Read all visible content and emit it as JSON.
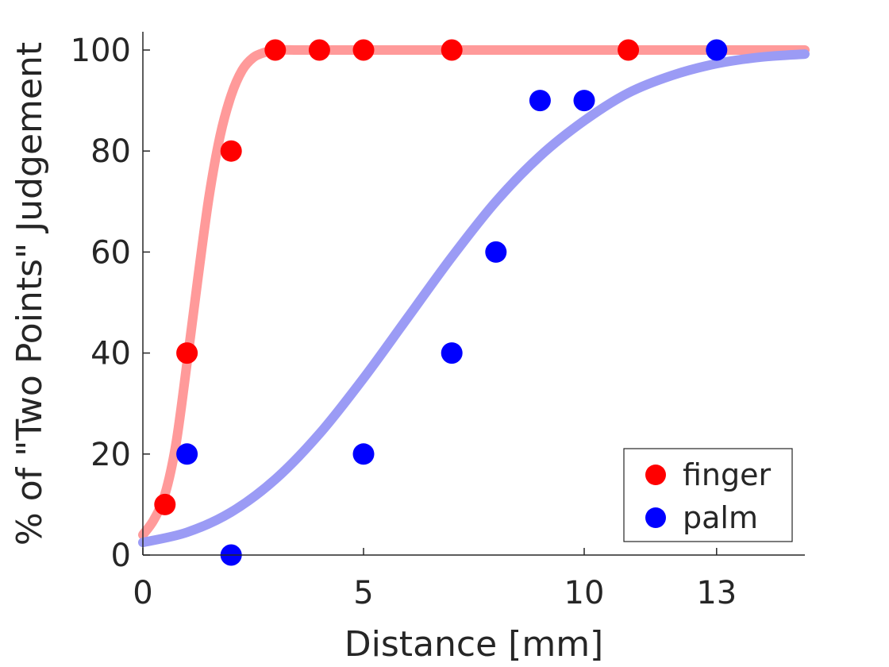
{
  "chart_data": {
    "type": "scatter",
    "xlabel": "Distance [mm]",
    "ylabel": "% of \"Two Points\" Judgement",
    "xlim": [
      0,
      15
    ],
    "ylim": [
      0,
      100
    ],
    "xticks": [
      0,
      5,
      10,
      13
    ],
    "yticks": [
      0,
      20,
      40,
      60,
      80,
      100
    ],
    "grid": false,
    "legend_location": "bottom-right",
    "series": [
      {
        "name": "finger",
        "marker_color": "#ff0000",
        "fit_color": "#ff9a9a",
        "points": [
          {
            "x": 0.5,
            "y": 10
          },
          {
            "x": 1,
            "y": 40
          },
          {
            "x": 2,
            "y": 80
          },
          {
            "x": 3,
            "y": 100
          },
          {
            "x": 4,
            "y": 100
          },
          {
            "x": 5,
            "y": 100
          },
          {
            "x": 7,
            "y": 100
          },
          {
            "x": 11,
            "y": 100
          }
        ],
        "fit": {
          "x": [
            0,
            0.25,
            0.5,
            0.75,
            1,
            1.25,
            1.5,
            1.75,
            2,
            2.25,
            2.5,
            2.75,
            3,
            3.5,
            4,
            5,
            7,
            10,
            15
          ],
          "y": [
            4,
            7,
            12,
            22,
            38,
            55,
            71,
            83,
            91,
            96,
            98.5,
            99.5,
            100,
            100,
            100,
            100,
            100,
            100,
            100
          ]
        }
      },
      {
        "name": "palm",
        "marker_color": "#0000ff",
        "fit_color": "#9b9bf5",
        "points": [
          {
            "x": 1,
            "y": 20
          },
          {
            "x": 2,
            "y": 0
          },
          {
            "x": 5,
            "y": 20
          },
          {
            "x": 7,
            "y": 40
          },
          {
            "x": 8,
            "y": 60
          },
          {
            "x": 9,
            "y": 90
          },
          {
            "x": 10,
            "y": 90
          },
          {
            "x": 13,
            "y": 100
          }
        ],
        "fit": {
          "x": [
            0,
            1,
            2,
            3,
            4,
            5,
            6,
            7,
            8,
            9,
            10,
            11,
            12,
            13,
            14,
            15
          ],
          "y": [
            2.5,
            4.5,
            8.5,
            15,
            24,
            35,
            47,
            59,
            70,
            79,
            86,
            91.5,
            95,
            97.3,
            98.6,
            99.2
          ]
        }
      }
    ]
  }
}
